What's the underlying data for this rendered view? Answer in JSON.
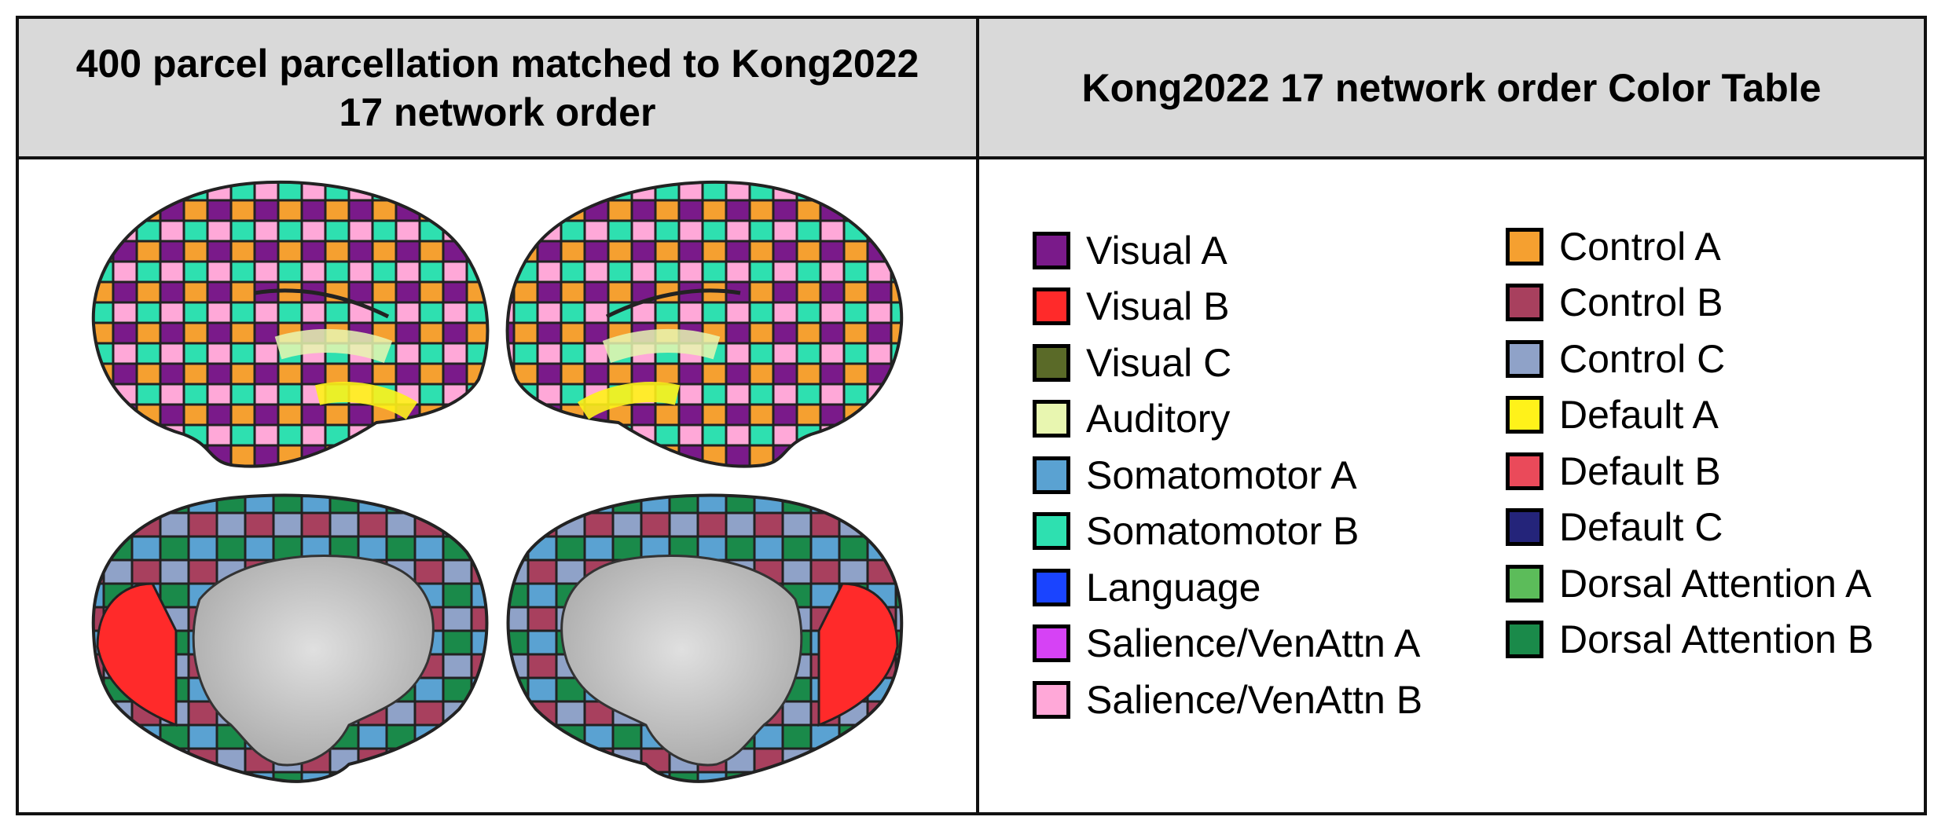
{
  "headers": {
    "left_line1": "400 parcel parcellation matched to Kong2022",
    "left_line2": "17 network order",
    "right": "Kong2022 17 network order Color Table"
  },
  "legend": {
    "column1": [
      {
        "label": "Visual A",
        "color": "#7a1a8a"
      },
      {
        "label": "Visual B",
        "color": "#ff2a2a"
      },
      {
        "label": "Visual C",
        "color": "#5a6a28"
      },
      {
        "label": "Auditory",
        "color": "#e8f6b0"
      },
      {
        "label": "Somatomotor A",
        "color": "#5aa2d2"
      },
      {
        "label": "Somatomotor B",
        "color": "#2ee0b0"
      },
      {
        "label": "Language",
        "color": "#1a44ff"
      },
      {
        "label": "Salience/VenAttn A",
        "color": "#d642f5"
      },
      {
        "label": "Salience/VenAttn B",
        "color": "#ffa8d8"
      }
    ],
    "column2": [
      {
        "label": "Control A",
        "color": "#f5a030"
      },
      {
        "label": "Control B",
        "color": "#a8405e"
      },
      {
        "label": "Control C",
        "color": "#8fa2c8"
      },
      {
        "label": "Default A",
        "color": "#fff21a"
      },
      {
        "label": "Default B",
        "color": "#ea4a5a"
      },
      {
        "label": "Default C",
        "color": "#24247a"
      },
      {
        "label": "Dorsal Attention A",
        "color": "#5cbc5a"
      },
      {
        "label": "Dorsal Attention B",
        "color": "#1a8a4a"
      }
    ]
  }
}
